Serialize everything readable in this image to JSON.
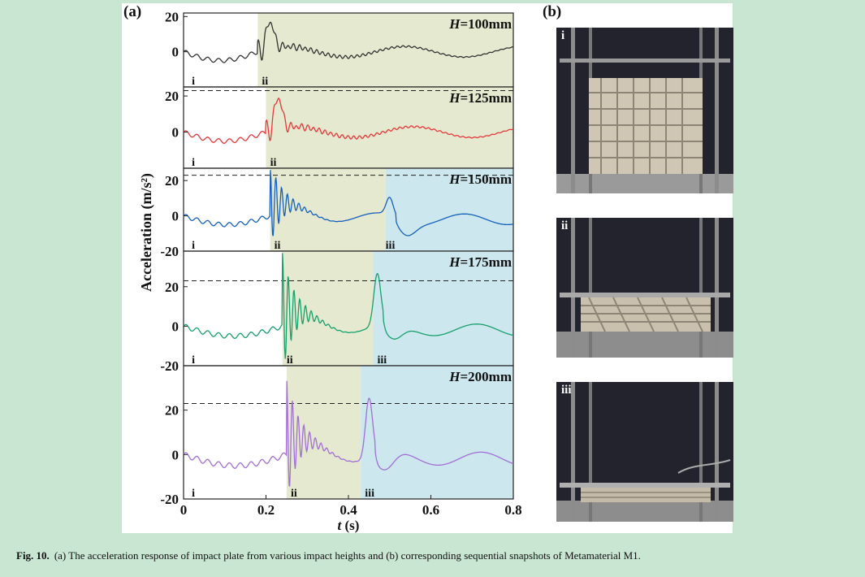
{
  "figure": {
    "panel_a_label": "(a)",
    "panel_b_label": "(b)",
    "caption_label": "Fig. 10.",
    "caption_text": "(a) The acceleration response of impact plate from various impact heights and (b) corresponding sequential snapshots of Metamaterial M1."
  },
  "chart_data": {
    "type": "line",
    "title": "",
    "xlabel_italic": "t",
    "xlabel_unit": " (s)",
    "ylabel": "Acceleration (m/s²)",
    "xlim": [
      0,
      0.8
    ],
    "xticks": [
      0,
      0.2,
      0.4,
      0.6,
      0.8
    ],
    "xtick_labels": [
      "0",
      "0.2",
      "0.4",
      "0.6",
      "0.8"
    ],
    "reference_line": 23,
    "phase_colors": {
      "compression": "#e4e9cf",
      "rebound": "#cde7ef"
    },
    "series": [
      {
        "name": "H=100mm",
        "height_label": "=100mm",
        "color": "#333333",
        "ylim": [
          -20,
          22
        ],
        "yticks": [
          0,
          20
        ],
        "ytick_labels": [
          "0",
          "20"
        ],
        "ref_line": false,
        "compression": [
          0.18,
          0.8
        ],
        "rebound": null,
        "markers": [
          {
            "t": 0.02,
            "label": "i"
          },
          {
            "t": 0.19,
            "label": "ii"
          }
        ]
      },
      {
        "name": "H=125mm",
        "height_label": "=125mm",
        "color": "#e8383b",
        "ylim": [
          -20,
          25
        ],
        "yticks": [
          0,
          20
        ],
        "ytick_labels": [
          "0",
          "20"
        ],
        "ref_line": true,
        "compression": [
          0.2,
          0.8
        ],
        "rebound": null,
        "markers": [
          {
            "t": 0.02,
            "label": "i"
          },
          {
            "t": 0.21,
            "label": "ii"
          }
        ]
      },
      {
        "name": "H=150mm",
        "height_label": "=150mm",
        "color": "#1560bd",
        "ylim": [
          -20,
          27
        ],
        "yticks": [
          -20,
          0,
          20
        ],
        "ytick_labels": [
          "-20",
          "0",
          "20"
        ],
        "ref_line": true,
        "compression": [
          0.21,
          0.49
        ],
        "rebound": [
          0.49,
          0.8
        ],
        "markers": [
          {
            "t": 0.02,
            "label": "i"
          },
          {
            "t": 0.22,
            "label": "ii"
          },
          {
            "t": 0.49,
            "label": "iii"
          }
        ]
      },
      {
        "name": "H=175mm",
        "height_label": "=175mm",
        "color": "#16a06b",
        "ylim": [
          -20,
          38
        ],
        "yticks": [
          -20,
          0,
          20
        ],
        "ytick_labels": [
          "-20",
          "0",
          "20"
        ],
        "ref_line": true,
        "compression": [
          0.24,
          0.46
        ],
        "rebound": [
          0.46,
          0.8
        ],
        "markers": [
          {
            "t": 0.02,
            "label": "i"
          },
          {
            "t": 0.25,
            "label": "ii"
          },
          {
            "t": 0.47,
            "label": "iii"
          }
        ]
      },
      {
        "name": "H=200mm",
        "height_label": "=200mm",
        "color": "#a26fd6",
        "ylim": [
          -20,
          40
        ],
        "yticks": [
          -20,
          0,
          20
        ],
        "ytick_labels": [
          "-20",
          "0",
          "20"
        ],
        "ref_line": true,
        "compression": [
          0.25,
          0.43
        ],
        "rebound": [
          0.43,
          0.8
        ],
        "markers": [
          {
            "t": 0.02,
            "label": "i"
          },
          {
            "t": 0.26,
            "label": "ii"
          },
          {
            "t": 0.44,
            "label": "iii"
          }
        ]
      }
    ]
  },
  "photos": [
    {
      "label": "i"
    },
    {
      "label": "ii"
    },
    {
      "label": "iii"
    }
  ]
}
